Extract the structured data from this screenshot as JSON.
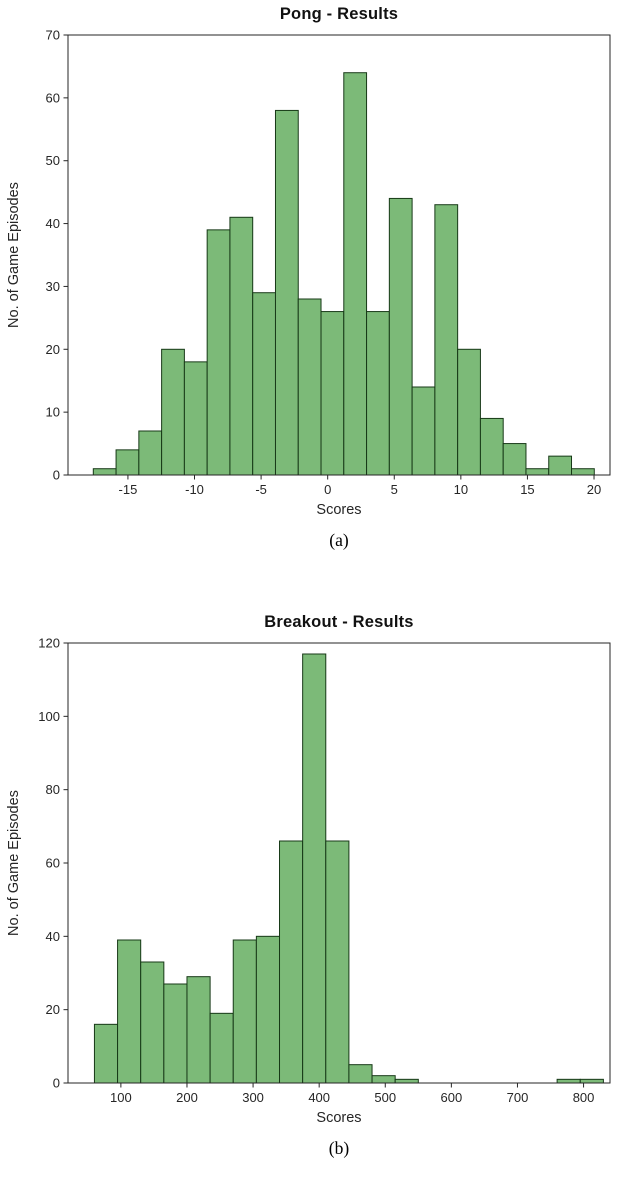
{
  "page": {
    "background": "#ffffff"
  },
  "chart_data": [
    {
      "type": "bar",
      "subtype": "histogram",
      "title": "Pong - Results",
      "xlabel": "Scores",
      "ylabel": "No. of Game Episodes",
      "caption": "(a)",
      "bin_start": -17.6,
      "bin_width": 1.71,
      "values": [
        1,
        4,
        7,
        20,
        18,
        39,
        41,
        29,
        58,
        28,
        26,
        64,
        26,
        44,
        14,
        43,
        20,
        9,
        5,
        1,
        3,
        1
      ],
      "xlim": [
        -19.5,
        21.2
      ],
      "ylim": [
        0,
        70
      ],
      "xticks": [
        -15,
        -10,
        -5,
        0,
        5,
        10,
        15,
        20
      ],
      "yticks": [
        0,
        10,
        20,
        30,
        40,
        50,
        60,
        70
      ],
      "grid": false,
      "bar_fill": "#7cba78",
      "bar_edge": "#173917",
      "axis_color": "#262626"
    },
    {
      "type": "bar",
      "subtype": "histogram",
      "title": "Breakout - Results",
      "xlabel": "Scores",
      "ylabel": "No. of Game Episodes",
      "caption": "(b)",
      "bin_start": 60,
      "bin_width": 35,
      "values": [
        16,
        39,
        33,
        27,
        29,
        19,
        39,
        40,
        66,
        117,
        66,
        5,
        2,
        1,
        0,
        0,
        0,
        0,
        0,
        0,
        1,
        1
      ],
      "xlim": [
        20,
        840
      ],
      "ylim": [
        0,
        120
      ],
      "xticks": [
        100,
        200,
        300,
        400,
        500,
        600,
        700,
        800
      ],
      "yticks": [
        0,
        20,
        40,
        60,
        80,
        100,
        120
      ],
      "grid": false,
      "bar_fill": "#7cba78",
      "bar_edge": "#173917",
      "axis_color": "#262626"
    }
  ]
}
